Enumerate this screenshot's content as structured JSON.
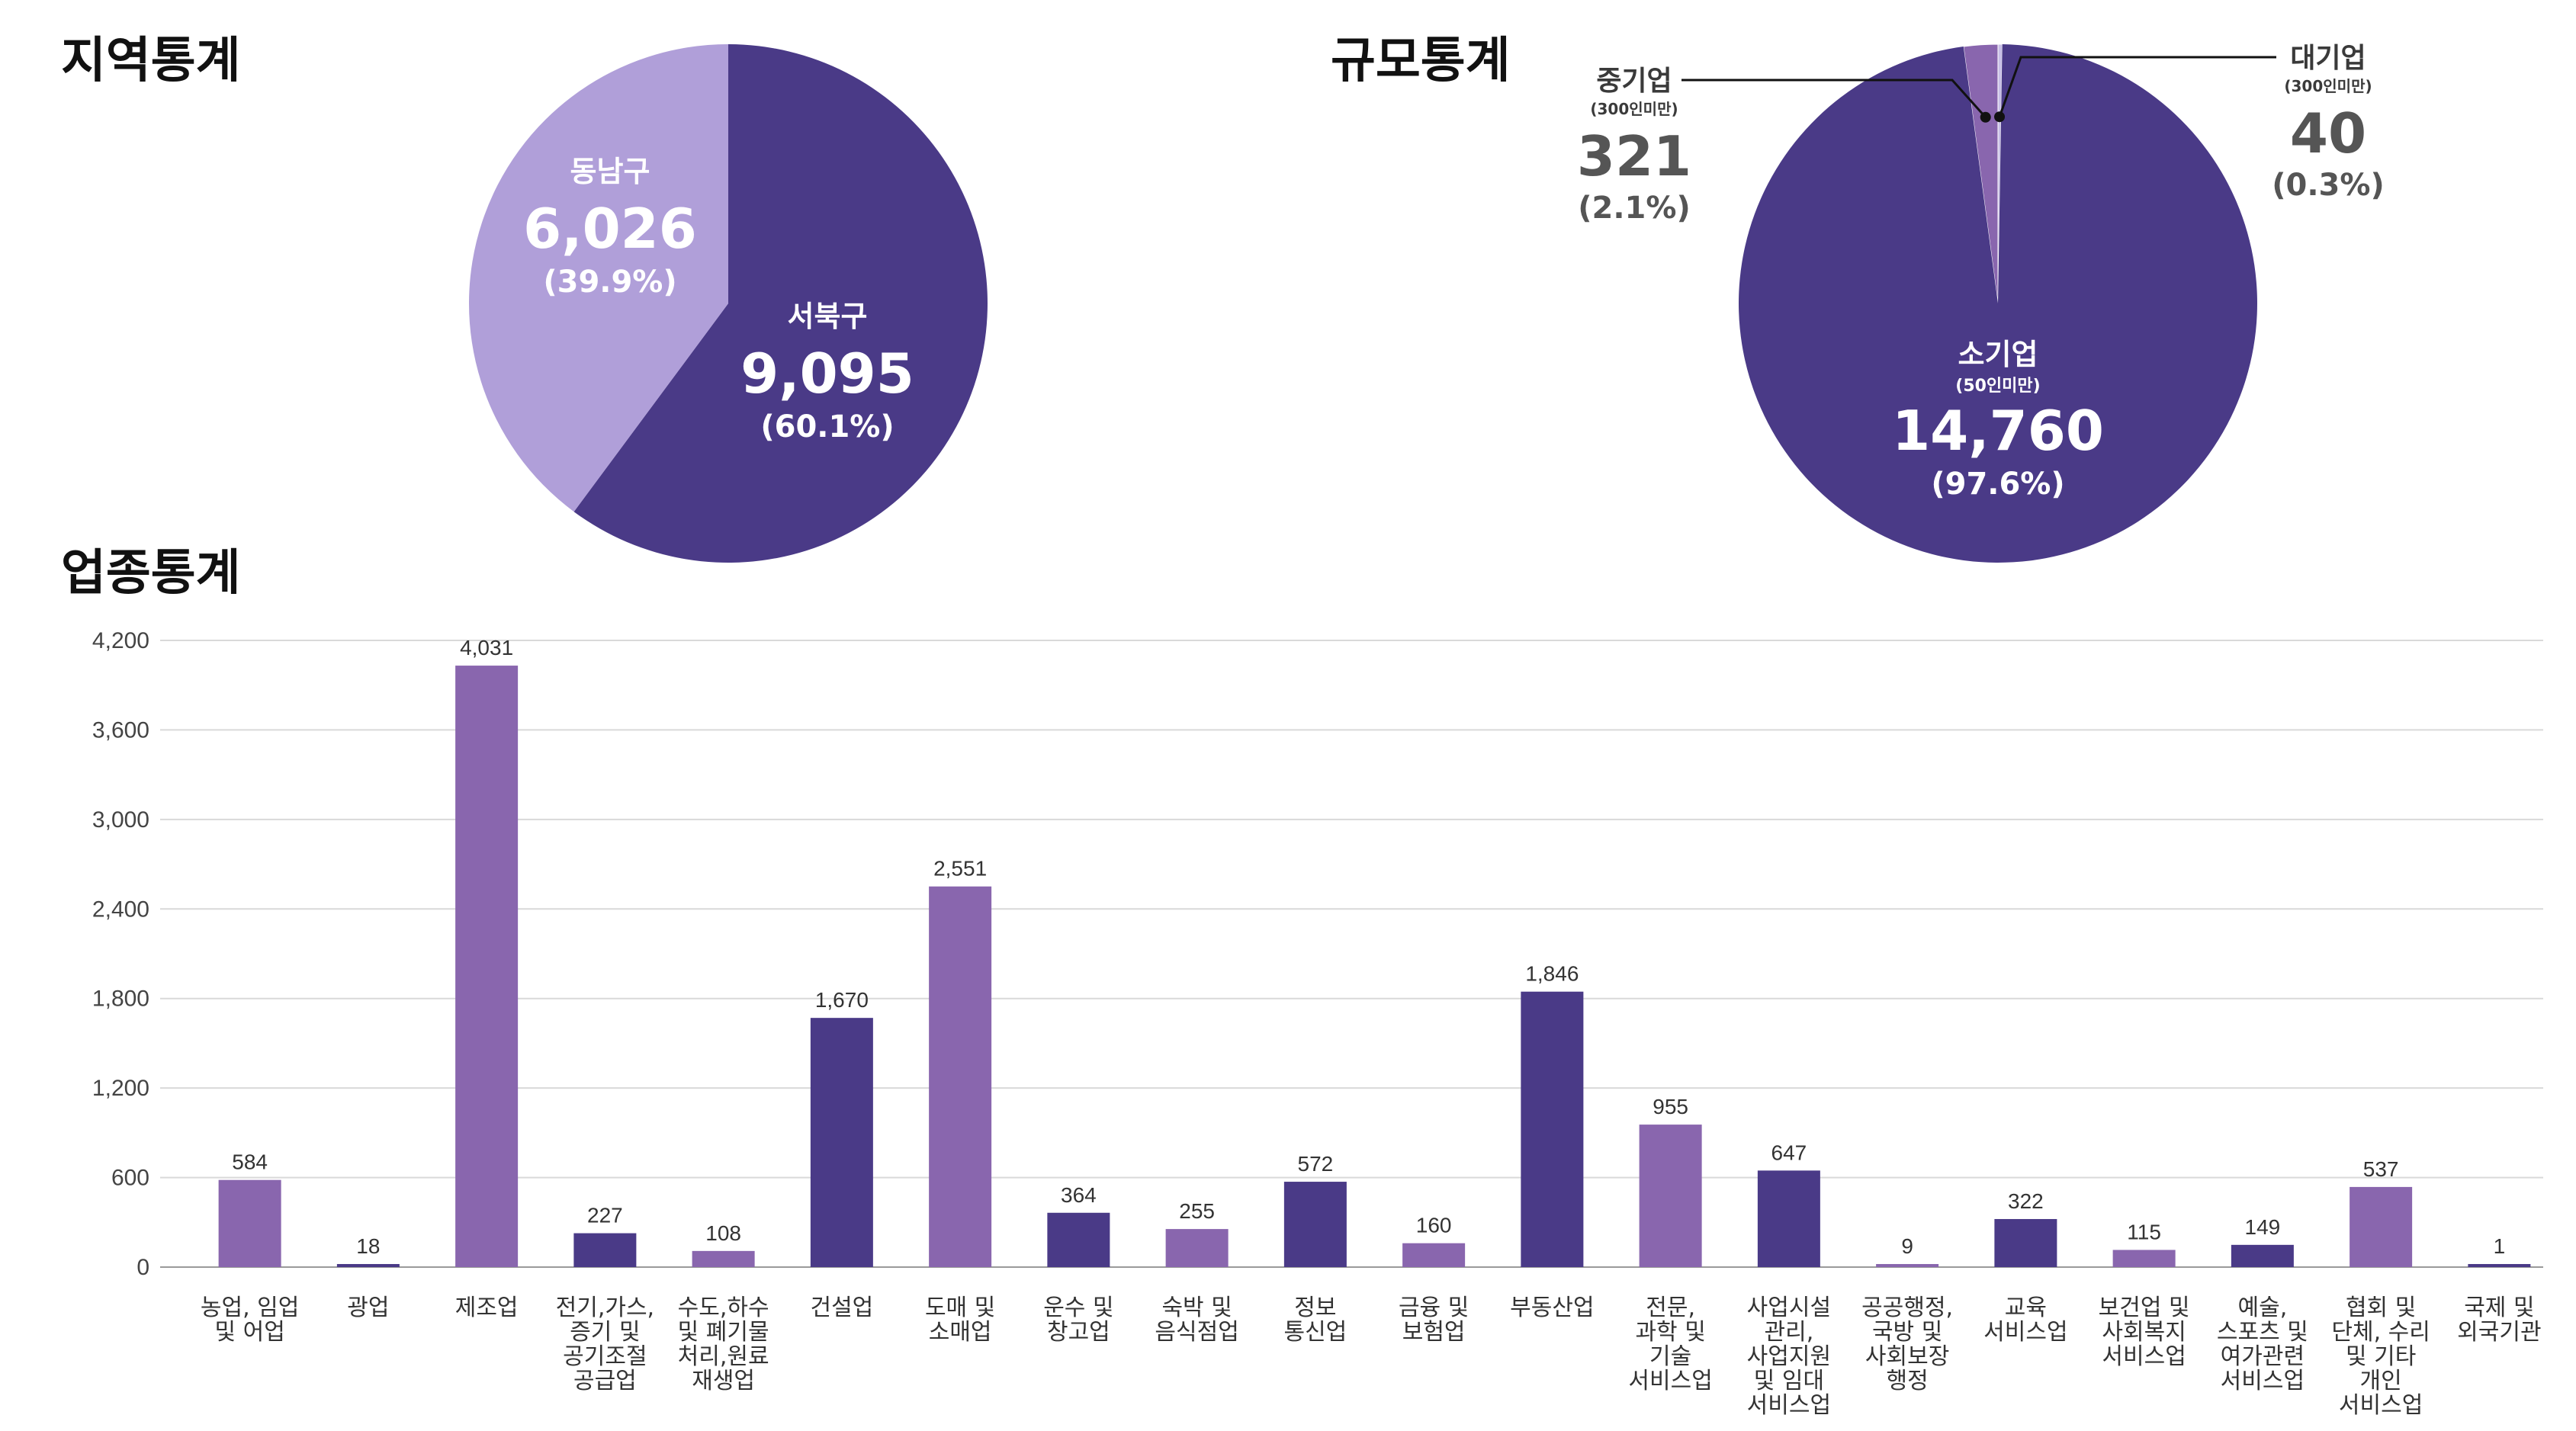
{
  "colors": {
    "dark": "#4a3a87",
    "mid": "#8966ae",
    "light": "#b09fd9",
    "lightest": "#c8bfe6"
  },
  "chart_data": [
    {
      "type": "pie",
      "title": "지역통계",
      "slices": [
        {
          "name": "서북구",
          "value": 9095,
          "value_label": "9,095",
          "percent": 60.1,
          "percent_label": "(60.1%)",
          "color": "#4a3a87"
        },
        {
          "name": "동남구",
          "value": 6026,
          "value_label": "6,026",
          "percent": 39.9,
          "percent_label": "(39.9%)",
          "color": "#b09fd9"
        }
      ]
    },
    {
      "type": "pie",
      "title": "규모통계",
      "slices": [
        {
          "name": "소기업",
          "sub": "(50인미만)",
          "value": 14760,
          "value_label": "14,760",
          "percent": 97.6,
          "percent_label": "(97.6%)",
          "color": "#4a3a87"
        },
        {
          "name": "중기업",
          "sub": "(300인미만)",
          "value": 321,
          "value_label": "321",
          "percent": 2.1,
          "percent_label": "(2.1%)",
          "color": "#8966ae"
        },
        {
          "name": "대기업",
          "sub": "(300인미만)",
          "value": 40,
          "value_label": "40",
          "percent": 0.3,
          "percent_label": "(0.3%)",
          "color": "#c8bfe6"
        }
      ]
    },
    {
      "type": "bar",
      "title": "업종통계",
      "ylim": [
        0,
        4200
      ],
      "yticks": [
        0,
        600,
        1200,
        1800,
        2400,
        3000,
        3600,
        4200
      ],
      "ytick_labels": [
        "0",
        "600",
        "1,200",
        "1,800",
        "2,400",
        "3,000",
        "3,600",
        "4,200"
      ],
      "categories": [
        [
          "농업, 임업",
          "및 어업"
        ],
        [
          "광업"
        ],
        [
          "제조업"
        ],
        [
          "전기,가스,",
          "증기 및",
          "공기조절",
          "공급업"
        ],
        [
          "수도,하수",
          "및 폐기물",
          "처리,원료",
          "재생업"
        ],
        [
          "건설업"
        ],
        [
          "도매 및",
          "소매업"
        ],
        [
          "운수 및",
          "창고업"
        ],
        [
          "숙박 및",
          "음식점업"
        ],
        [
          "정보",
          "통신업"
        ],
        [
          "금융 및",
          "보험업"
        ],
        [
          "부동산업"
        ],
        [
          "전문,",
          "과학 및",
          "기술",
          "서비스업"
        ],
        [
          "사업시설",
          "관리,",
          "사업지원",
          "및 임대",
          "서비스업"
        ],
        [
          "공공행정,",
          "국방 및",
          "사회보장",
          "행정"
        ],
        [
          "교육",
          "서비스업"
        ],
        [
          "보건업 및",
          "사회복지",
          "서비스업"
        ],
        [
          "예술,",
          "스포츠 및",
          "여가관련",
          "서비스업"
        ],
        [
          "협회 및",
          "단체, 수리",
          "및 기타",
          "개인",
          "서비스업"
        ],
        [
          "국제 및",
          "외국기관"
        ]
      ],
      "values": [
        584,
        18,
        4031,
        227,
        108,
        1670,
        2551,
        364,
        255,
        572,
        160,
        1846,
        955,
        647,
        9,
        322,
        115,
        149,
        537,
        1
      ],
      "value_labels": [
        "584",
        "18",
        "4,031",
        "227",
        "108",
        "1,670",
        "2,551",
        "364",
        "255",
        "572",
        "160",
        "1,846",
        "955",
        "647",
        "9",
        "322",
        "115",
        "149",
        "537",
        "1"
      ],
      "bar_colors": [
        "#8966ae",
        "#4a3a87",
        "#8966ae",
        "#4a3a87",
        "#8966ae",
        "#4a3a87",
        "#8966ae",
        "#4a3a87",
        "#8966ae",
        "#4a3a87",
        "#8966ae",
        "#4a3a87",
        "#8966ae",
        "#4a3a87",
        "#8966ae",
        "#4a3a87",
        "#8966ae",
        "#4a3a87",
        "#8966ae",
        "#4a3a87"
      ]
    }
  ]
}
